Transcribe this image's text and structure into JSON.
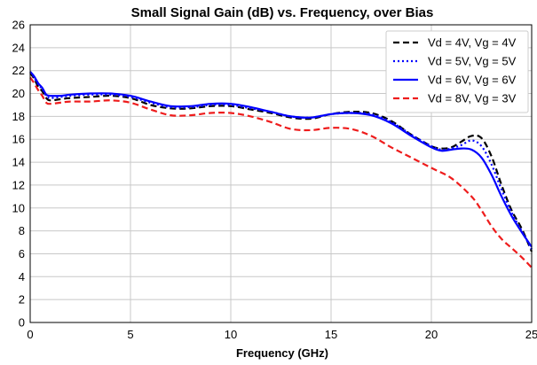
{
  "chart_data": {
    "type": "line",
    "title": "Small Signal Gain (dB) vs. Frequency, over Bias",
    "xlabel": "Frequency (GHz)",
    "ylabel": "",
    "xlim": [
      0,
      25
    ],
    "ylim": [
      0,
      26
    ],
    "xticks": [
      0,
      5,
      10,
      15,
      20,
      25
    ],
    "yticks": [
      0,
      2,
      4,
      6,
      8,
      10,
      12,
      14,
      16,
      18,
      20,
      22,
      24,
      26
    ],
    "grid": true,
    "legend_position": "top-right",
    "series": [
      {
        "name": "Vd = 4V, Vg = 4V",
        "color": "#000000",
        "style": "dashed",
        "x": [
          0,
          0.2,
          0.4,
          0.6,
          0.8,
          1,
          1.5,
          2,
          3,
          4,
          5,
          6,
          7,
          8,
          9,
          10,
          11,
          12,
          13,
          14,
          15,
          16,
          17,
          18,
          19,
          20,
          20.5,
          21,
          21.5,
          22,
          22.5,
          23,
          23.5,
          24,
          24.5,
          25
        ],
        "y": [
          21.8,
          21.3,
          20.6,
          20.2,
          19.6,
          19.4,
          19.5,
          19.6,
          19.7,
          19.8,
          19.6,
          19.0,
          18.7,
          18.7,
          18.9,
          18.9,
          18.6,
          18.3,
          17.9,
          17.8,
          18.2,
          18.4,
          18.3,
          17.6,
          16.4,
          15.4,
          15.2,
          15.3,
          15.8,
          16.3,
          16.1,
          14.5,
          12.0,
          9.8,
          8.2,
          6.2
        ]
      },
      {
        "name": "Vd = 5V, Vg = 5V",
        "color": "#0000ff",
        "style": "dotted",
        "x": [
          0,
          0.2,
          0.4,
          0.6,
          0.8,
          1,
          1.5,
          2,
          3,
          4,
          5,
          6,
          7,
          8,
          9,
          10,
          11,
          12,
          13,
          14,
          15,
          16,
          17,
          18,
          19,
          20,
          20.5,
          21,
          21.5,
          22,
          22.5,
          23,
          23.5,
          24,
          24.5,
          25
        ],
        "y": [
          21.9,
          21.4,
          20.8,
          20.4,
          19.8,
          19.6,
          19.7,
          19.8,
          19.9,
          19.9,
          19.7,
          19.2,
          18.8,
          18.8,
          19.0,
          19.0,
          18.7,
          18.4,
          18.0,
          17.9,
          18.2,
          18.3,
          18.2,
          17.5,
          16.4,
          15.4,
          15.1,
          15.2,
          15.5,
          15.9,
          15.4,
          13.8,
          11.6,
          9.6,
          8.0,
          6.4
        ]
      },
      {
        "name": "Vd = 6V, Vg = 6V",
        "color": "#0000ff",
        "style": "solid",
        "x": [
          0,
          0.2,
          0.4,
          0.6,
          0.8,
          1,
          1.5,
          2,
          3,
          4,
          5,
          6,
          7,
          8,
          9,
          10,
          11,
          12,
          13,
          14,
          15,
          16,
          17,
          18,
          19,
          20,
          20.5,
          21,
          21.5,
          22,
          22.5,
          23,
          23.5,
          24,
          24.5,
          25
        ],
        "y": [
          21.9,
          21.5,
          20.9,
          20.5,
          19.9,
          19.8,
          19.8,
          19.9,
          20.0,
          20.0,
          19.8,
          19.3,
          18.9,
          18.9,
          19.1,
          19.1,
          18.8,
          18.4,
          18.0,
          17.9,
          18.2,
          18.3,
          18.1,
          17.4,
          16.3,
          15.3,
          15.0,
          15.1,
          15.2,
          15.1,
          14.4,
          12.9,
          11.0,
          9.3,
          7.9,
          6.6
        ]
      },
      {
        "name": "Vd = 8V, Vg = 3V",
        "color": "#ee1c1c",
        "style": "dashed",
        "x": [
          0,
          0.2,
          0.4,
          0.6,
          0.8,
          1,
          1.5,
          2,
          3,
          4,
          5,
          6,
          7,
          8,
          9,
          10,
          11,
          12,
          13,
          14,
          15,
          16,
          17,
          18,
          19,
          20,
          21,
          22,
          22.5,
          23,
          23.5,
          24,
          24.5,
          25
        ],
        "y": [
          21.4,
          20.9,
          20.3,
          19.8,
          19.2,
          19.1,
          19.2,
          19.3,
          19.3,
          19.4,
          19.2,
          18.6,
          18.1,
          18.1,
          18.3,
          18.3,
          18.0,
          17.5,
          16.9,
          16.8,
          17.0,
          16.9,
          16.3,
          15.3,
          14.4,
          13.5,
          12.6,
          11.0,
          9.8,
          8.4,
          7.3,
          6.5,
          5.7,
          4.8
        ]
      }
    ]
  }
}
